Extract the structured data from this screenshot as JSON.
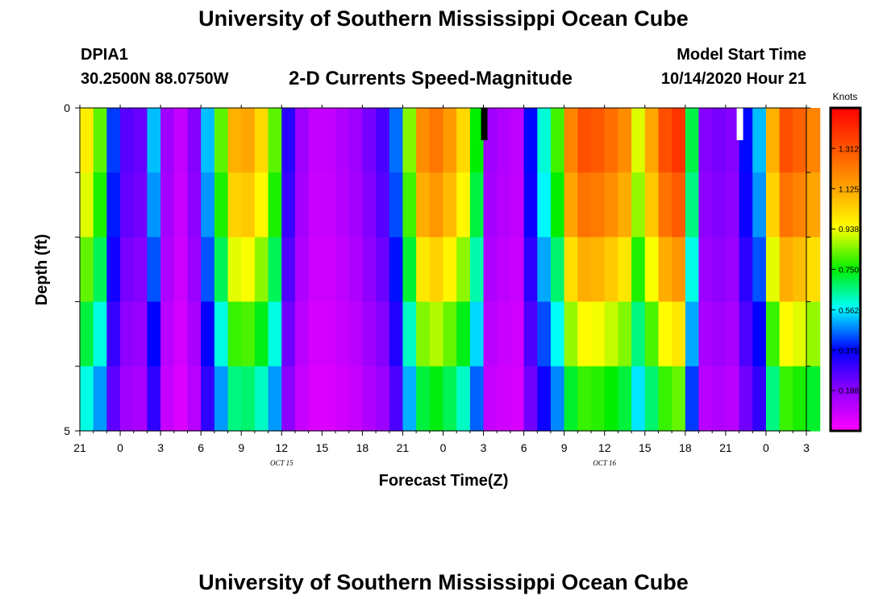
{
  "header": {
    "title": "University of Southern Mississippi Ocean Cube",
    "station": "DPIA1",
    "coords": "30.2500N 88.0750W",
    "subtitle": "2-D Currents Speed-Magnitude",
    "model_start_label": "Model Start Time",
    "model_start_value": "10/14/2020 Hour 21"
  },
  "footer": {
    "title": "University of Southern Mississippi Ocean Cube"
  },
  "chart_data": {
    "type": "heatmap",
    "xlabel": "Forecast Time(Z)",
    "ylabel": "Depth (ft)",
    "colorbar_label": "Knots",
    "colorbar_ticks": [
      "0.188",
      "0.375",
      "0.562",
      "0.750",
      "0.938",
      "1.125",
      "1.312"
    ],
    "colorbar_range": [
      0,
      1.5
    ],
    "x_range_hours": [
      0,
      54
    ],
    "x_step_hours": 1,
    "x_tick_labels": [
      "21",
      "0",
      "3",
      "6",
      "9",
      "12",
      "15",
      "18",
      "21",
      "0",
      "3",
      "6",
      "9",
      "12",
      "15",
      "18",
      "21",
      "0",
      "3"
    ],
    "date_labels": [
      {
        "text": "OCT 15",
        "hour": 15
      },
      {
        "text": "OCT 16",
        "hour": 39
      }
    ],
    "y_range": [
      0,
      5
    ],
    "y_tick_labels": [
      "0",
      "5"
    ],
    "depth_levels": 5,
    "surface_values": [
      0.98,
      0.82,
      0.42,
      0.26,
      0.24,
      0.52,
      0.16,
      0.1,
      0.2,
      0.52,
      0.82,
      1.1,
      1.12,
      1.02,
      0.82,
      0.32,
      0.16,
      0.1,
      0.1,
      0.13,
      0.16,
      0.22,
      0.28,
      0.46,
      0.85,
      1.18,
      1.23,
      1.15,
      1.02,
      0.75,
      0.16,
      0.13,
      0.11,
      0.38,
      0.6,
      0.8,
      1.2,
      1.32,
      1.3,
      1.25,
      1.18,
      0.92,
      1.12,
      1.32,
      1.38,
      0.7,
      0.2,
      0.22,
      0.2,
      0.38,
      0.52,
      1.1,
      1.32,
      1.28,
      1.2
    ],
    "depth_factors": [
      1.0,
      0.94,
      0.84,
      0.72,
      0.6
    ],
    "missing_cells": [
      {
        "hour": 30,
        "depth_level": 0,
        "color": "#000000"
      },
      {
        "hour": 49,
        "depth_level": 0,
        "color": "#ffffff"
      }
    ]
  }
}
